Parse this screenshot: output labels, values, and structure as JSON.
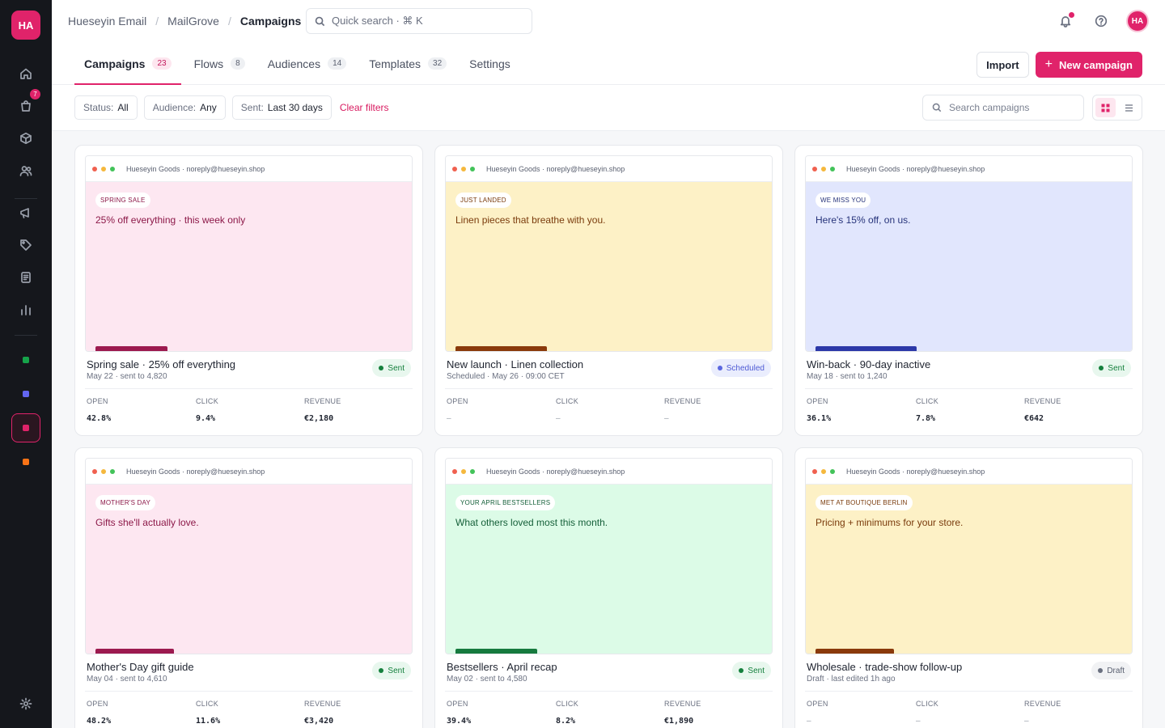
{
  "sidebar": {
    "logo": "HA",
    "cart_badge": "7",
    "items": [
      {
        "icon": "home-icon"
      },
      {
        "icon": "shopping-bag-icon"
      },
      {
        "icon": "box-icon"
      },
      {
        "icon": "users-icon"
      },
      {
        "icon": "megaphone-icon"
      },
      {
        "icon": "tag-icon"
      },
      {
        "icon": "document-icon"
      },
      {
        "icon": "bar-chart-icon"
      }
    ],
    "workspaces": [
      {
        "color": "#16a34a"
      },
      {
        "color": "#6366f1"
      },
      {
        "color": "#e0236a",
        "active": true
      },
      {
        "color": "#f97316"
      }
    ]
  },
  "topbar": {
    "breadcrumb": [
      "Hueseyin Email",
      "MailGrove",
      "Campaigns"
    ],
    "search_placeholder": "Quick search · ⌘ K",
    "avatar": "HA"
  },
  "tabs": [
    {
      "label": "Campaigns",
      "count": "23",
      "active": true
    },
    {
      "label": "Flows",
      "count": "8"
    },
    {
      "label": "Audiences",
      "count": "14"
    },
    {
      "label": "Templates",
      "count": "32"
    },
    {
      "label": "Settings",
      "count": ""
    }
  ],
  "actions": {
    "import": "Import",
    "new_campaign": "New campaign"
  },
  "filters": {
    "status_label": "Status:",
    "status_value": "All",
    "audience_label": "Audience:",
    "audience_value": "Any",
    "sent_label": "Sent:",
    "sent_value": "Last 30 days",
    "clear": "Clear filters",
    "search_placeholder": "Search campaigns"
  },
  "metric_labels": {
    "open": "OPEN",
    "click": "CLICK",
    "revenue": "REVENUE"
  },
  "campaigns": [
    {
      "sender": "Hueseyin Goods · noreply@hueseyin.shop",
      "tag": "SPRING SALE",
      "headline": "25% off everything · this week only",
      "bg": "#fde7f1",
      "fg": "#8c1848",
      "bar": "#9c1a4f",
      "bar_w": 0.22,
      "title": "Spring sale · 25% off everything",
      "sub": "May 22 · sent to 4,820",
      "status": "Sent",
      "status_kind": "sent",
      "open": "42.8%",
      "click": "9.4%",
      "revenue": "€2,180"
    },
    {
      "sender": "Hueseyin Goods · noreply@hueseyin.shop",
      "tag": "JUST LANDED",
      "headline": "Linen pieces that breathe with you.",
      "bg": "#fdf1c6",
      "fg": "#7a3b0c",
      "bar": "#8a3a0b",
      "bar_w": 0.28,
      "title": "New launch · Linen collection",
      "sub": "Scheduled · May 26 · 09:00 CET",
      "status": "Scheduled",
      "status_kind": "scheduled",
      "open": "–",
      "click": "–",
      "revenue": "–"
    },
    {
      "sender": "Hueseyin Goods · noreply@hueseyin.shop",
      "tag": "WE MISS YOU",
      "headline": "Here's 15% off, on us.",
      "bg": "#e1e6fd",
      "fg": "#26337a",
      "bar": "#2c38a8",
      "bar_w": 0.31,
      "title": "Win-back · 90-day inactive",
      "sub": "May 18 · sent to 1,240",
      "status": "Sent",
      "status_kind": "sent",
      "open": "36.1%",
      "click": "7.8%",
      "revenue": "€642"
    },
    {
      "sender": "Hueseyin Goods · noreply@hueseyin.shop",
      "tag": "MOTHER'S DAY",
      "headline": "Gifts she'll actually love.",
      "bg": "#fde7f1",
      "fg": "#8c1848",
      "bar": "#9c1a4f",
      "bar_w": 0.24,
      "title": "Mother's Day gift guide",
      "sub": "May 04 · sent to 4,610",
      "status": "Sent",
      "status_kind": "sent",
      "open": "48.2%",
      "click": "11.6%",
      "revenue": "€3,420"
    },
    {
      "sender": "Hueseyin Goods · noreply@hueseyin.shop",
      "tag": "YOUR APRIL BESTSELLERS",
      "headline": "What others loved most this month.",
      "bg": "#dcfbe7",
      "fg": "#16603a",
      "bar": "#167a3e",
      "bar_w": 0.25,
      "title": "Bestsellers · April recap",
      "sub": "May 02 · sent to 4,580",
      "status": "Sent",
      "status_kind": "sent",
      "open": "39.4%",
      "click": "8.2%",
      "revenue": "€1,890"
    },
    {
      "sender": "Hueseyin Goods · noreply@hueseyin.shop",
      "tag": "MET AT BOUTIQUE BERLIN",
      "headline": "Pricing + minimums for your store.",
      "bg": "#fdf1c6",
      "fg": "#7a3b0c",
      "bar": "#8a3a0b",
      "bar_w": 0.24,
      "title": "Wholesale · trade-show follow-up",
      "sub": "Draft · last edited 1h ago",
      "status": "Draft",
      "status_kind": "draft",
      "open": "–",
      "click": "–",
      "revenue": "–"
    }
  ]
}
